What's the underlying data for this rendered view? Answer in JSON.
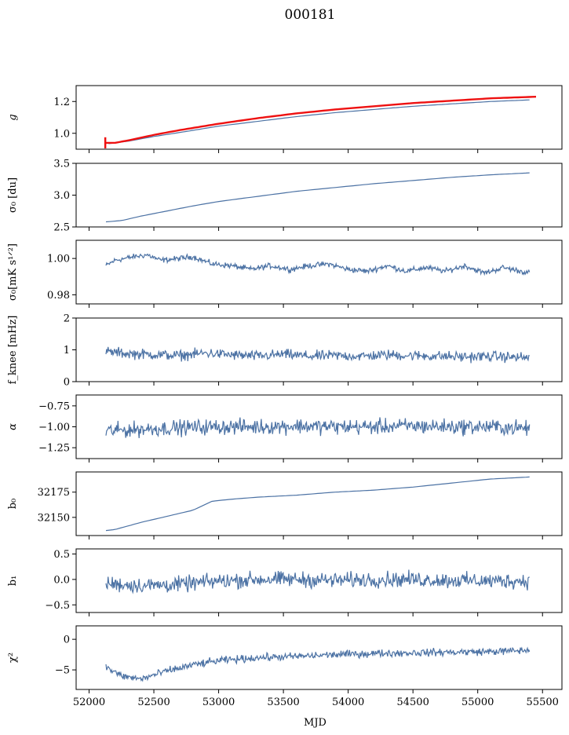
{
  "title": "000181",
  "chart_data": {
    "type": "line",
    "xlabel": "MJD",
    "xlim": [
      51900,
      55650
    ],
    "xticks": [
      52000,
      52500,
      53000,
      53500,
      54000,
      54500,
      55000,
      55500
    ],
    "panels": [
      {
        "ylabel": "g",
        "ylim": [
          0.9,
          1.3
        ],
        "yticks": [
          1.0,
          1.2
        ],
        "ytick_labels": [
          "1.0",
          "1.2"
        ],
        "series": [
          {
            "color": "#4c72a4",
            "width": 1.2,
            "x": [
              52150,
              52300,
              52500,
              52700,
              53000,
              53300,
              53600,
              53900,
              54200,
              54500,
              54800,
              55100,
              55400
            ],
            "y": [
              0.935,
              0.95,
              0.98,
              1.005,
              1.045,
              1.075,
              1.105,
              1.13,
              1.15,
              1.17,
              1.185,
              1.2,
              1.21
            ]
          },
          {
            "color": "#ee1111",
            "width": 2.4,
            "x": [
              52120,
              52200,
              52300,
              52500,
              52700,
              53000,
              53300,
              53600,
              53900,
              54200,
              54500,
              54800,
              55100,
              55450
            ],
            "y": [
              0.94,
              0.94,
              0.955,
              0.99,
              1.02,
              1.06,
              1.095,
              1.125,
              1.15,
              1.17,
              1.19,
              1.205,
              1.22,
              1.23
            ]
          }
        ]
      },
      {
        "ylabel": "σ0 [du]",
        "ylim": [
          2.5,
          3.5
        ],
        "yticks": [
          2.5,
          3.0,
          3.5
        ],
        "ytick_labels": [
          "2.5",
          "3.0",
          "3.5"
        ],
        "series": [
          {
            "color": "#4c72a4",
            "width": 1.2,
            "x": [
              52130,
              52250,
              52400,
              52600,
              52800,
              53000,
              53300,
              53600,
              53900,
              54200,
              54500,
              54800,
              55100,
              55400
            ],
            "y": [
              2.58,
              2.6,
              2.67,
              2.75,
              2.83,
              2.9,
              2.98,
              3.06,
              3.12,
              3.18,
              3.23,
              3.28,
              3.32,
              3.35
            ]
          }
        ]
      },
      {
        "ylabel": "σ0[mK s^1/2]",
        "ylim": [
          0.975,
          1.01
        ],
        "yticks": [
          0.98,
          1.0
        ],
        "ytick_labels": [
          "0.98",
          "1.00"
        ],
        "series": [
          {
            "color": "#4c72a4",
            "width": 1.2,
            "x": [
              52130,
              52200,
              52350,
              52450,
              52550,
              52700,
              52800,
              52950,
              53100,
              53250,
              53400,
              53550,
              53700,
              53850,
              54000,
              54150,
              54300,
              54450,
              54600,
              54750,
              54900,
              55050,
              55200,
              55400
            ],
            "y": [
              0.996,
              0.999,
              1.001,
              1.002,
              0.999,
              1.0,
              1.001,
              0.997,
              0.996,
              0.994,
              0.996,
              0.994,
              0.996,
              0.997,
              0.994,
              0.993,
              0.996,
              0.993,
              0.995,
              0.993,
              0.996,
              0.992,
              0.995,
              0.992
            ]
          }
        ]
      },
      {
        "ylabel": "f_knee [mHz]",
        "ylim": [
          0,
          2
        ],
        "yticks": [
          0,
          1,
          2
        ],
        "ytick_labels": [
          "0",
          "1",
          "2"
        ],
        "series": [
          {
            "color": "#4c72a4",
            "width": 1.2,
            "x": [
              52130,
              52300,
              52500,
              52700,
              52900,
              53100,
              53300,
              53500,
              53700,
              53900,
              54100,
              54300,
              54500,
              54700,
              54900,
              55100,
              55400
            ],
            "y": [
              0.95,
              0.88,
              0.85,
              0.82,
              0.9,
              0.84,
              0.8,
              0.86,
              0.8,
              0.82,
              0.8,
              0.84,
              0.82,
              0.8,
              0.78,
              0.8,
              0.75
            ]
          }
        ]
      },
      {
        "ylabel": "α",
        "ylim": [
          -1.38,
          -0.62
        ],
        "yticks": [
          -1.25,
          -1.0,
          -0.75
        ],
        "ytick_labels": [
          "−1.25",
          "−1.00",
          "−0.75"
        ],
        "series": [
          {
            "color": "#4c72a4",
            "width": 1.2,
            "x": [
              52130,
              52400,
              52700,
              53000,
              53300,
              53600,
              53900,
              54200,
              54500,
              54800,
              55100,
              55400
            ],
            "y": [
              -1.05,
              -1.03,
              -1.01,
              -1.0,
              -1.0,
              -0.99,
              -1.0,
              -1.0,
              -0.99,
              -1.0,
              -1.0,
              -1.02
            ]
          }
        ]
      },
      {
        "ylabel": "b0",
        "ylim": [
          32132,
          32195
        ],
        "yticks": [
          32150,
          32175
        ],
        "ytick_labels": [
          "32150",
          "32175"
        ],
        "series": [
          {
            "color": "#4c72a4",
            "width": 1.2,
            "x": [
              52130,
              52200,
              52400,
              52600,
              52800,
              52950,
              53100,
              53300,
              53600,
              53900,
              54200,
              54500,
              54800,
              55100,
              55400
            ],
            "y": [
              32137,
              32138,
              32145,
              32151,
              32157,
              32166,
              32168,
              32170,
              32172,
              32175,
              32177,
              32180,
              32184,
              32188,
              32190
            ]
          }
        ]
      },
      {
        "ylabel": "b1",
        "ylim": [
          -0.65,
          0.6
        ],
        "yticks": [
          -0.5,
          0.0,
          0.5
        ],
        "ytick_labels": [
          "−0.5",
          "0.0",
          "0.5"
        ],
        "series": [
          {
            "color": "#4c72a4",
            "width": 1.2,
            "x": [
              52130,
              52400,
              52700,
              53000,
              53300,
              53600,
              53900,
              54200,
              54500,
              54800,
              55100,
              55400
            ],
            "y": [
              -0.08,
              -0.12,
              -0.1,
              -0.03,
              0.0,
              0.0,
              -0.02,
              0.0,
              0.0,
              -0.02,
              -0.03,
              -0.03
            ]
          }
        ]
      },
      {
        "ylabel": "χ2",
        "ylim": [
          -8.2,
          2.2
        ],
        "yticks": [
          -5,
          0
        ],
        "ytick_labels": [
          "−5",
          "0"
        ],
        "series": [
          {
            "color": "#4c72a4",
            "width": 1.2,
            "x": [
              52130,
              52250,
              52400,
              52600,
              52800,
              53000,
              53300,
              53600,
              53900,
              54200,
              54500,
              54800,
              55100,
              55400
            ],
            "y": [
              -4.5,
              -6.0,
              -6.5,
              -5.2,
              -4.2,
              -3.5,
              -3.0,
              -2.8,
              -2.5,
              -2.3,
              -2.2,
              -2.1,
              -2.0,
              -1.8
            ]
          }
        ]
      }
    ],
    "noise": [
      0,
      0,
      0.0015,
      0.16,
      0.09,
      0,
      0.15,
      0.6
    ]
  }
}
